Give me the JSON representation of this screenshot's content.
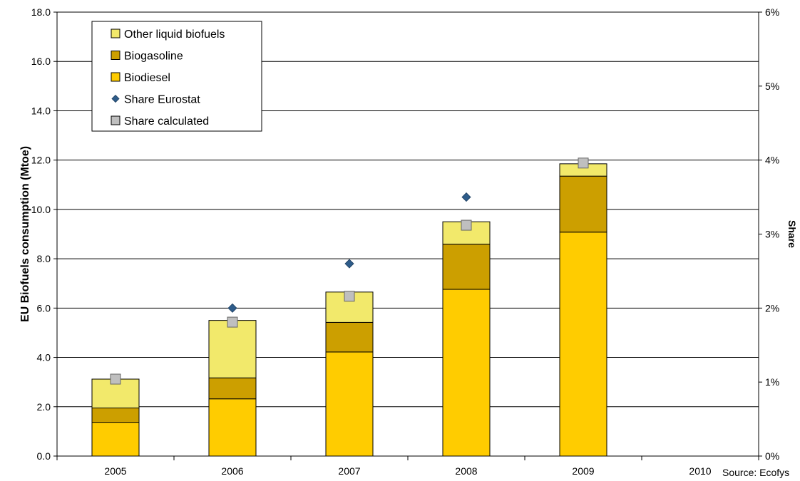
{
  "chart_data": {
    "type": "bar",
    "stacked": true,
    "categories": [
      "2005",
      "2006",
      "2007",
      "2008",
      "2009",
      "2010"
    ],
    "series": [
      {
        "name": "Biodiesel",
        "color": "#FFCC00",
        "values": [
          1.37,
          2.32,
          4.22,
          6.76,
          9.08,
          null
        ]
      },
      {
        "name": "Biogasoline",
        "color": "#CC9F00",
        "values": [
          0.58,
          0.85,
          1.2,
          1.83,
          2.27,
          null
        ]
      },
      {
        "name": "Other liquid biofuels",
        "color": "#F2E96B",
        "values": [
          1.17,
          2.33,
          1.23,
          0.91,
          0.5,
          null
        ]
      }
    ],
    "share_series": [
      {
        "name": "Share Eurostat",
        "marker": "diamond",
        "color": "#2E5C8A",
        "values": [
          null,
          2.0,
          2.6,
          3.5,
          null,
          null
        ]
      },
      {
        "name": "Share calculated",
        "marker": "square",
        "color": "#BFBFBF",
        "values": [
          1.04,
          1.81,
          2.16,
          3.12,
          3.96,
          null
        ]
      }
    ],
    "ylabel": "EU Biofuels consumption (Mtoe)",
    "y2label": "Share",
    "ylim": [
      0,
      18
    ],
    "y2lim": [
      0,
      6
    ],
    "yticks": [
      "0.0",
      "2.0",
      "4.0",
      "6.0",
      "8.0",
      "10.0",
      "12.0",
      "14.0",
      "16.0",
      "18.0"
    ],
    "y2ticks": [
      "0%",
      "1%",
      "2%",
      "3%",
      "4%",
      "5%",
      "6%"
    ],
    "grid": true,
    "legend": {
      "position": "top-left",
      "entries": [
        {
          "label": "Other liquid biofuels",
          "marker": "square",
          "color": "#F2E96B"
        },
        {
          "label": "Biogasoline",
          "marker": "square",
          "color": "#CC9F00"
        },
        {
          "label": "Biodiesel",
          "marker": "square",
          "color": "#FFCC00"
        },
        {
          "label": "Share Eurostat",
          "marker": "diamond",
          "color": "#2E5C8A"
        },
        {
          "label": "Share calculated",
          "marker": "square",
          "color": "#BFBFBF"
        }
      ]
    }
  },
  "source_note": "Source: Ecofys"
}
